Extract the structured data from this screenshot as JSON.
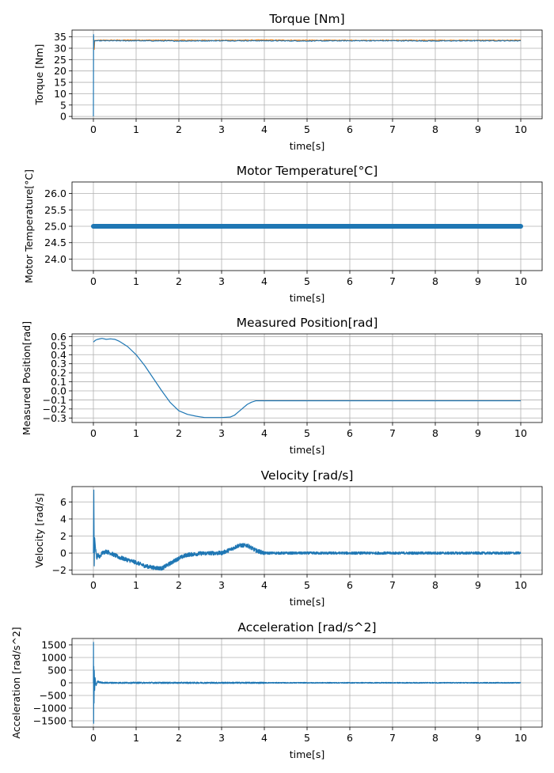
{
  "chart_data": [
    {
      "type": "line",
      "title": "Torque [Nm]",
      "xlabel": "time[s]",
      "ylabel": "Torque [Nm]",
      "xlim": [
        -0.5,
        10.5
      ],
      "ylim": [
        -1,
        38
      ],
      "xticks": [
        0,
        1,
        2,
        3,
        4,
        5,
        6,
        7,
        8,
        9,
        10
      ],
      "yticks": [
        0,
        5,
        10,
        15,
        20,
        25,
        30,
        35
      ],
      "grid": true,
      "series": [
        {
          "color": "#ff7f0e",
          "x": [
            0,
            0.02,
            0.03,
            0.05,
            0.1,
            1,
            2,
            3,
            4,
            5,
            6,
            7,
            8,
            9,
            10
          ],
          "y": [
            34,
            29.5,
            33.5,
            33.4,
            33.5,
            33.6,
            33.5,
            33.5,
            33.6,
            33.5,
            33.5,
            33.5,
            33.5,
            33.5,
            33.5
          ]
        },
        {
          "color": "#1f77b4",
          "x": [
            0,
            0.005,
            0.01,
            0.02,
            0.05,
            1,
            2,
            3,
            4,
            5,
            6,
            7,
            8,
            9,
            10
          ],
          "y": [
            0,
            36,
            30,
            33.2,
            33.3,
            33.3,
            33.2,
            33.3,
            33.3,
            33.2,
            33.3,
            33.3,
            33.2,
            33.3,
            33.3
          ]
        }
      ]
    },
    {
      "type": "line",
      "title": "Motor Temperature[°C]",
      "xlabel": "time[s]",
      "ylabel": "Motor Temperature[°C]",
      "xlim": [
        -0.5,
        10.5
      ],
      "ylim": [
        23.65,
        26.35
      ],
      "xticks": [
        0,
        1,
        2,
        3,
        4,
        5,
        6,
        7,
        8,
        9,
        10
      ],
      "yticks": [
        24.0,
        24.5,
        25.0,
        25.5,
        26.0
      ],
      "ytick_labels": [
        "24.0",
        "24.5",
        "25.0",
        "25.5",
        "26.0"
      ],
      "grid": true,
      "series": [
        {
          "color": "#1f77b4",
          "x": [
            0,
            10
          ],
          "y": [
            25.0,
            25.0
          ]
        }
      ]
    },
    {
      "type": "line",
      "title": "Measured Position[rad]",
      "xlabel": "time[s]",
      "ylabel": "Measured Position[rad]",
      "xlim": [
        -0.5,
        10.5
      ],
      "ylim": [
        -0.35,
        0.63
      ],
      "xticks": [
        0,
        1,
        2,
        3,
        4,
        5,
        6,
        7,
        8,
        9,
        10
      ],
      "yticks": [
        -0.3,
        -0.2,
        -0.1,
        0.0,
        0.1,
        0.2,
        0.3,
        0.4,
        0.5,
        0.6
      ],
      "ytick_labels": [
        "−0.3",
        "−0.2",
        "−0.1",
        "0.0",
        "0.1",
        "0.2",
        "0.3",
        "0.4",
        "0.5",
        "0.6"
      ],
      "grid": true,
      "series": [
        {
          "color": "#1f77b4",
          "x": [
            0,
            0.05,
            0.1,
            0.2,
            0.3,
            0.4,
            0.5,
            0.6,
            0.8,
            1.0,
            1.2,
            1.4,
            1.6,
            1.8,
            2.0,
            2.2,
            2.4,
            2.6,
            2.8,
            3.0,
            3.2,
            3.3,
            3.4,
            3.5,
            3.6,
            3.7,
            3.8,
            3.9,
            4.0,
            5,
            6,
            7,
            8,
            9,
            10
          ],
          "y": [
            0.54,
            0.56,
            0.57,
            0.58,
            0.57,
            0.575,
            0.57,
            0.55,
            0.49,
            0.4,
            0.28,
            0.14,
            0.0,
            -0.13,
            -0.22,
            -0.26,
            -0.28,
            -0.295,
            -0.295,
            -0.295,
            -0.29,
            -0.27,
            -0.23,
            -0.19,
            -0.15,
            -0.125,
            -0.11,
            -0.11,
            -0.11,
            -0.11,
            -0.11,
            -0.11,
            -0.11,
            -0.11,
            -0.11
          ]
        }
      ]
    },
    {
      "type": "line",
      "title": "Velocity [rad/s]",
      "xlabel": "time[s]",
      "ylabel": "Velocity [rad/s]",
      "xlim": [
        -0.5,
        10.5
      ],
      "ylim": [
        -2.5,
        7.8
      ],
      "xticks": [
        0,
        1,
        2,
        3,
        4,
        5,
        6,
        7,
        8,
        9,
        10
      ],
      "yticks": [
        -2,
        0,
        2,
        4,
        6
      ],
      "ytick_labels": [
        "−2",
        "0",
        "2",
        "4",
        "6"
      ],
      "grid": true,
      "series": [
        {
          "color": "#1f77b4",
          "x": [
            0,
            0.01,
            0.02,
            0.03,
            0.05,
            0.08,
            0.1,
            0.15,
            0.2,
            0.3,
            0.4,
            0.6,
            0.8,
            1.0,
            1.2,
            1.4,
            1.6,
            1.8,
            2.0,
            2.2,
            2.5,
            2.8,
            3.0,
            3.2,
            3.4,
            3.6,
            3.8,
            4.0,
            5,
            6,
            7,
            8,
            9,
            10
          ],
          "y": [
            0,
            7.4,
            -1.5,
            1.8,
            0.5,
            -0.6,
            -0.2,
            -0.5,
            0.0,
            0.2,
            0.0,
            -0.5,
            -0.8,
            -1.1,
            -1.5,
            -1.7,
            -1.8,
            -1.2,
            -0.6,
            -0.2,
            -0.05,
            0.0,
            0.0,
            0.4,
            0.9,
            0.9,
            0.3,
            0.0,
            0.0,
            0.0,
            0.0,
            0.0,
            0.0,
            0.0
          ],
          "noise": 0.15
        }
      ]
    },
    {
      "type": "line",
      "title": "Acceleration [rad/s^2]",
      "xlabel": "time[s]",
      "ylabel": "Acceleration [rad/s^2]",
      "xlim": [
        -0.5,
        10.5
      ],
      "ylim": [
        -1750,
        1750
      ],
      "xticks": [
        0,
        1,
        2,
        3,
        4,
        5,
        6,
        7,
        8,
        9,
        10
      ],
      "yticks": [
        -1500,
        -1000,
        -500,
        0,
        500,
        1000,
        1500
      ],
      "ytick_labels": [
        "−1500",
        "−1000",
        "−500",
        "0",
        "500",
        "1000",
        "1500"
      ],
      "grid": true,
      "series": [
        {
          "color": "#1f77b4",
          "x": [
            0,
            0.003,
            0.006,
            0.01,
            0.015,
            0.02,
            0.03,
            0.04,
            0.06,
            0.1,
            0.2,
            10
          ],
          "y": [
            0,
            1600,
            -1600,
            650,
            -800,
            500,
            -300,
            200,
            -100,
            50,
            0,
            0
          ],
          "noise": 18
        }
      ]
    }
  ]
}
